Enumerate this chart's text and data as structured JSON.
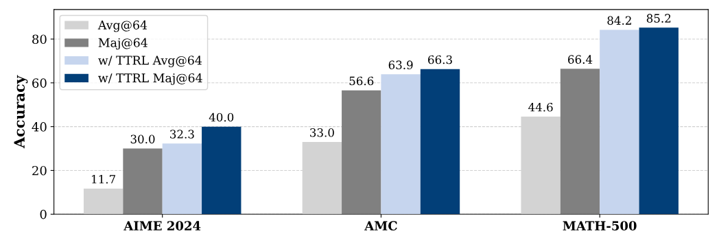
{
  "chart_data": {
    "type": "bar",
    "ylabel": "Accuracy",
    "categories": [
      "AIME 2024",
      "AMC",
      "MATH-500"
    ],
    "series": [
      {
        "name": "Avg@64",
        "color": "#d3d3d3",
        "values": [
          11.7,
          33.0,
          44.6
        ],
        "value_labels": [
          "11.7",
          "33.0",
          "44.6"
        ]
      },
      {
        "name": "Maj@64",
        "color": "#808080",
        "values": [
          30.0,
          56.6,
          66.4
        ],
        "value_labels": [
          "30.0",
          "56.6",
          "66.4"
        ]
      },
      {
        "name": "w/ TTRL Avg@64",
        "color": "#c6d5ee",
        "values": [
          32.3,
          63.9,
          84.2
        ],
        "value_labels": [
          "32.3",
          "63.9",
          "84.2"
        ]
      },
      {
        "name": "w/ TTRL Maj@64",
        "color": "#023f78",
        "values": [
          40.0,
          66.3,
          85.2
        ],
        "value_labels": [
          "40.0",
          "66.3",
          "85.2"
        ]
      }
    ],
    "ylim": [
      0,
      93.5
    ],
    "yticks": [
      0,
      20,
      40,
      60,
      80
    ],
    "grid": "y",
    "legend": "top left"
  }
}
